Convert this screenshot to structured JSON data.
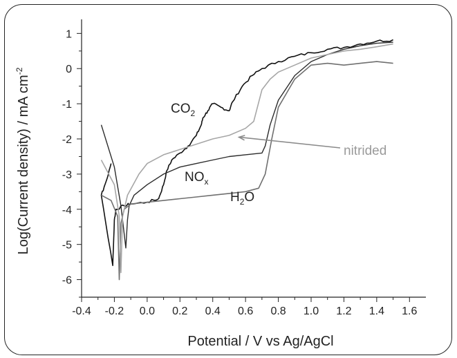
{
  "chart_data": {
    "type": "line",
    "xlabel": "Potential / V vs Ag/AgCl",
    "ylabel": "Log(Current density) / mA cm",
    "ylabel_sup": "-2",
    "xlim": [
      -0.4,
      1.7
    ],
    "ylim": [
      -6.5,
      1.4
    ],
    "xticks": [
      -0.4,
      -0.3,
      -0.2,
      -0.1,
      0.0,
      0.1,
      0.2,
      0.3,
      0.4,
      0.5,
      0.6,
      0.7,
      0.8,
      0.9,
      1.0,
      1.1,
      1.2,
      1.3,
      1.4,
      1.5,
      1.6
    ],
    "xtick_labels": [
      "-0.4",
      "-0.2",
      "0.0",
      "0.2",
      "0.4",
      "0.6",
      "0.8",
      "1.0",
      "1.2",
      "1.4",
      "1.6"
    ],
    "xtick_label_values": [
      -0.4,
      -0.2,
      0.0,
      0.2,
      0.4,
      0.6,
      0.8,
      1.0,
      1.2,
      1.4,
      1.6
    ],
    "yticks": [
      1,
      0,
      -1,
      -2,
      -3,
      -4,
      -5,
      -6
    ],
    "ytick_labels": [
      "1",
      "0",
      "-1",
      "-2",
      "-3",
      "-4",
      "-5",
      "-6"
    ],
    "grid": false,
    "series": [
      {
        "name": "CO2",
        "label_main": "CO",
        "label_sub": "2",
        "color": "#111111",
        "width": 1.6,
        "jitter": 0.04,
        "x": [
          -0.22,
          -0.25,
          -0.28,
          -0.21,
          -0.2,
          -0.19,
          -0.14,
          -0.1,
          0.0,
          0.07,
          0.1,
          0.12,
          0.15,
          0.2,
          0.25,
          0.3,
          0.33,
          0.34,
          0.37,
          0.4,
          0.45,
          0.5,
          0.52,
          0.58,
          0.64,
          0.7,
          0.8,
          0.9,
          1.0,
          1.1,
          1.2,
          1.3,
          1.4,
          1.5
        ],
        "y": [
          -2.7,
          -3.2,
          -3.6,
          -5.6,
          -4.3,
          -4.0,
          -3.9,
          -3.85,
          -3.8,
          -3.7,
          -3.3,
          -2.9,
          -2.6,
          -2.4,
          -2.2,
          -1.9,
          -1.6,
          -1.4,
          -1.2,
          -1.0,
          -1.1,
          -1.2,
          -0.95,
          -0.5,
          -0.2,
          0.0,
          0.2,
          0.35,
          0.45,
          0.55,
          0.6,
          0.7,
          0.78,
          0.82
        ]
      },
      {
        "name": "NOx",
        "label_main": "NO",
        "label_sub": "x",
        "color": "#2b2b2b",
        "width": 1.4,
        "jitter": 0.0,
        "x": [
          -0.28,
          -0.2,
          -0.16,
          -0.13,
          -0.12,
          -0.11,
          -0.08,
          0.0,
          0.1,
          0.2,
          0.3,
          0.4,
          0.5,
          0.6,
          0.7,
          0.72,
          0.75,
          0.8,
          0.9,
          1.0,
          1.1,
          1.2,
          1.3,
          1.4,
          1.5
        ],
        "y": [
          -1.6,
          -2.8,
          -3.9,
          -5.1,
          -4.3,
          -3.9,
          -3.6,
          -3.3,
          -3.0,
          -2.8,
          -2.7,
          -2.6,
          -2.5,
          -2.45,
          -2.4,
          -2.2,
          -1.6,
          -0.9,
          -0.2,
          0.2,
          0.4,
          0.55,
          0.65,
          0.72,
          0.75
        ]
      },
      {
        "name": "H2O",
        "label_main": "H",
        "label_sub": "2",
        "label_tail": "O",
        "color": "#6f6f6f",
        "width": 1.6,
        "jitter": 0.0,
        "x": [
          -0.28,
          -0.22,
          -0.18,
          -0.17,
          -0.16,
          -0.14,
          -0.1,
          0.0,
          0.1,
          0.2,
          0.3,
          0.4,
          0.5,
          0.6,
          0.68,
          0.72,
          0.76,
          0.8,
          0.9,
          1.0,
          1.1,
          1.2,
          1.3,
          1.4,
          1.5
        ],
        "y": [
          -3.6,
          -3.75,
          -4.2,
          -6.0,
          -4.4,
          -4.0,
          -3.85,
          -3.8,
          -3.75,
          -3.7,
          -3.65,
          -3.6,
          -3.55,
          -3.5,
          -3.4,
          -3.0,
          -2.0,
          -1.1,
          -0.3,
          0.1,
          0.15,
          0.1,
          0.15,
          0.2,
          0.15
        ]
      },
      {
        "name": "nitrided",
        "label_main": "nitrided",
        "color": "#a6a6a6",
        "width": 1.6,
        "jitter": 0.0,
        "x": [
          -0.28,
          -0.2,
          -0.17,
          -0.16,
          -0.15,
          -0.12,
          -0.05,
          0.0,
          0.1,
          0.2,
          0.3,
          0.4,
          0.5,
          0.6,
          0.65,
          0.7,
          0.75,
          0.8,
          0.9,
          1.0,
          1.1,
          1.2,
          1.3,
          1.4,
          1.5
        ],
        "y": [
          -2.6,
          -3.3,
          -4.2,
          -5.8,
          -4.2,
          -3.6,
          -3.0,
          -2.7,
          -2.45,
          -2.3,
          -2.15,
          -2.0,
          -1.9,
          -1.7,
          -1.5,
          -0.6,
          -0.3,
          -0.1,
          0.1,
          0.3,
          0.4,
          0.5,
          0.55,
          0.62,
          0.7
        ]
      }
    ],
    "annotations": [
      {
        "target": "nitrided",
        "label": "nitrided",
        "arrow_to": [
          0.56,
          -1.95
        ]
      }
    ]
  }
}
